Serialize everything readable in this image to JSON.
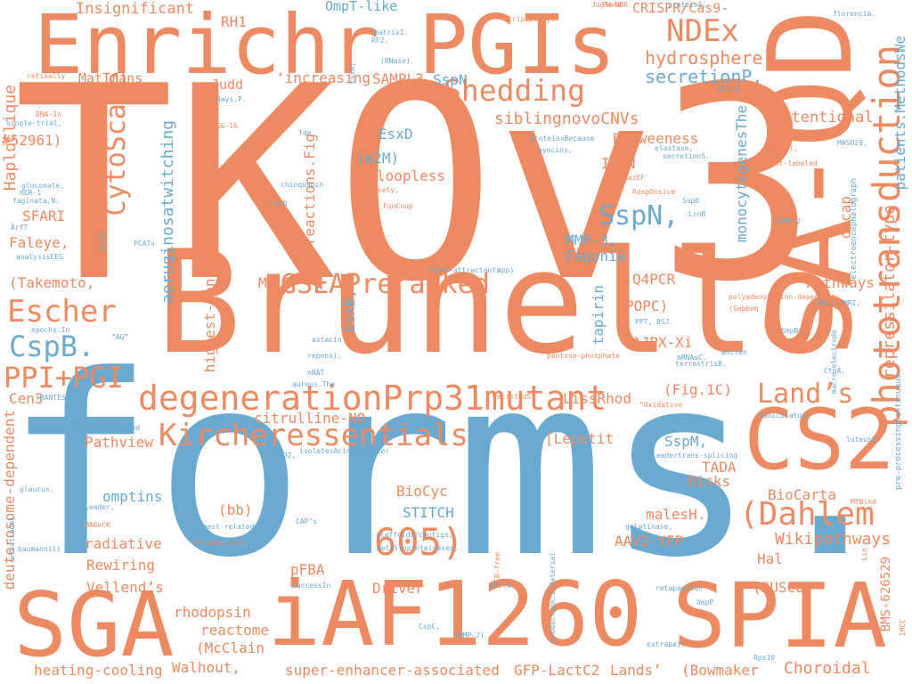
{
  "palette": {
    "orange": "#ee8a62",
    "blue": "#6aa9d0"
  },
  "words": [
    "TKOv3",
    "forms.",
    "Brunello",
    "Enrichr",
    "PGIs",
    "SA-QD",
    "CS2",
    "iAF1260",
    "SPIA",
    "SGA",
    "605)",
    "(Dahlem",
    "degenerationPrp31mutant",
    "Kircheressentials",
    "GSEAPreranked",
    "Shedding",
    "NDEx",
    "phototransduction",
    "CytoScape",
    "Escher",
    "CspB.",
    "PPI+PGI",
    "SspN,",
    "Land’s",
    "hydrosphere",
    "secretionP.",
    "repressilator-type",
    "patients.MethodsWe",
    "Insignificant",
    "OmpT-like",
    "CRISPR/Cas9-",
    "proteinS.",
    "tripeptidyl",
    "florencia.",
    "RH1",
    "MatTrans",
    "Judd",
    "‘increasing",
    "SAMPL3",
    "SspN",
    "siblingnovoCNVs",
    "Betweeness",
    "Attentional",
    "EsxD",
    "(α2M)",
    "loopless",
    "IREN",
    "aeruginosatwitching",
    "reactions.Fig",
    "WikiPathways",
    "HaploClique",
    "#52961)",
    "SFARI",
    "Faleye,",
    "(Takemoto,",
    "Cen3",
    "deuterosome-dependent",
    "MMP-3,",
    "Fagonia",
    "decap",
    "monocytogenesThe",
    "Pathways",
    "MALT",
    "highest-confidence",
    "Q4PCR",
    "OCSCC",
    "POPC)",
    "ΔJPX-Xi",
    "tapirin",
    "EsxB,",
    "(Fig.1C)",
    "citrulline-NO",
    "LissRhod",
    "[Lepetit",
    "Pathview",
    "SspM,",
    "TADA",
    "Risks",
    "BioCyc",
    "STITCH",
    "omptins",
    "(bb)",
    "radiative",
    "Rewiring",
    "Vellend’s",
    "rhodopsin",
    "reactome",
    "(McClain",
    "Walhout,",
    "heating-cooling",
    "super-enhancer-associated",
    "GFP-LactC2",
    "Lands’",
    "(Bowmaker",
    "Choroidal",
    "Driver",
    "(BUSCO)",
    "Hal",
    "pFBA",
    "AAV2-YFP",
    "malesH.",
    "Wikipathways",
    "BioCarta",
    "BMS-626529",
    "pre-processingContinuous",
    "electroencephalograph",
    "retinally",
    "DNA-In",
    "single-trial,",
    "gluconate,",
    "HER-1",
    "faginata,N.",
    "ArfT",
    "analysisEEG",
    "GpiB,",
    "PCATs",
    "VGG-16",
    "days.P.",
    "matrixI.",
    "RF2,",
    "(RNase)",
    "EsxA,",
    "Juglans",
    "PW-NBR",
    "Tde",
    "chinquapin",
    "CspB",
    "invasively,",
    "proteinsBecause",
    "pyocins,",
    "elastase,",
    "Mot",
    "(MMPs),",
    "dot-labeled",
    "MASO29,",
    "secretionS.",
    "MazEF",
    "RespOnsive",
    "SspO",
    "LcnB",
    "FunCoup",
    "chemo-attractants",
    "dpp)",
    "R18/DiOC",
    "(MMP-2",
    "ANJEA",
    "epochs.In",
    "“AG”",
    "astacin",
    "repens),",
    "aureus.The",
    "nNAT",
    "PPT,",
    "BSJ.",
    "polyadenylation-dependent",
    "(Sabbah",
    "BOLD-fMRI,",
    "SmpB,",
    "pentose-phosphate",
    "mRNAsC.",
    "terrestrisB.",
    "whiten",
    "macro-electrode",
    "CtpA,",
    "(RANTES)",
    "secretedS.",
    "“Oxidative",
    "maniculatus,",
    "luteusS.",
    "spiralisspliced",
    "hBD2,",
    "isolatesAcinetobacter",
    "leadertrans-splicing",
    "glaucus,",
    "leader,",
    "(electrode)",
    "MAGeCK",
    "digest-related",
    "CAP’s",
    "Milankovitch",
    "scaffolds/contigs,",
    "metalloproteinases,",
    "baumannii)",
    "successIn",
    "PCR-free",
    "production.2.Material",
    "gelatinase,",
    "retapamulin",
    "MPBind",
    "Lin",
    "OmpP",
    "pH7.8)",
    "CspC,",
    "(MMP-2)",
    "extrapair",
    "Rps10",
    "IMCC"
  ]
}
